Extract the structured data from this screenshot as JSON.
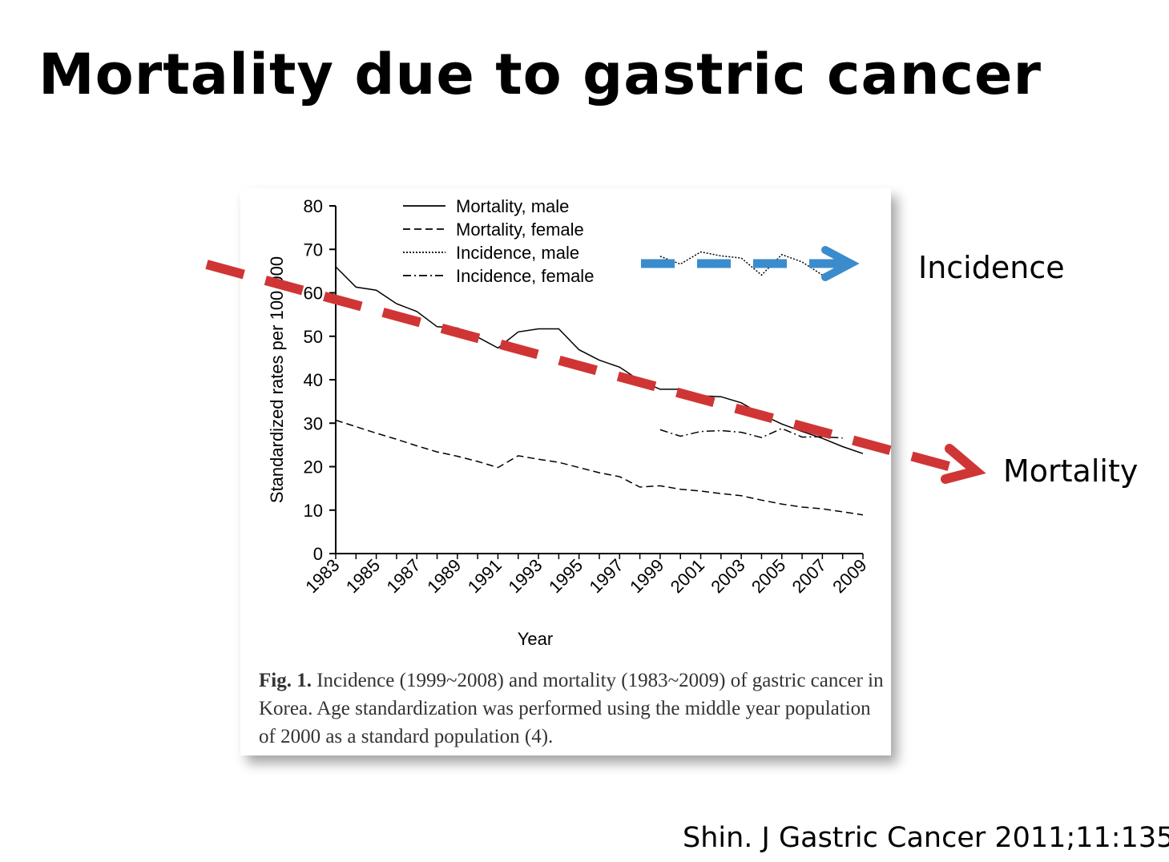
{
  "slide": {
    "title": "Mortality due to gastric cancer",
    "citation": "Shin. J Gastric Cancer 2011;11:135",
    "annotations": {
      "incidence_label": "Incidence",
      "mortality_label": "Mortality",
      "incidence_arrow_color": "#3b8ccc",
      "mortality_arrow_color": "#d03535"
    }
  },
  "figure": {
    "caption_label": "Fig. 1.",
    "caption_text": " Incidence (1999~2008) and mortality (1983~2009) of gastric cancer in Korea. Age standardization was performed using the middle year population of 2000 as a standard population (4)."
  },
  "chart_data": {
    "type": "line",
    "title": "",
    "xlabel": "Year",
    "ylabel": "Standardized rates per 100,000",
    "xlim": [
      1983,
      2009
    ],
    "ylim": [
      0,
      80
    ],
    "yticks": [
      0,
      10,
      20,
      30,
      40,
      50,
      60,
      70,
      80
    ],
    "xticks": [
      "1983",
      "1985",
      "1987",
      "1989",
      "1991",
      "1993",
      "1995",
      "1997",
      "1999",
      "2001",
      "2003",
      "2005",
      "2007",
      "2009"
    ],
    "grid": false,
    "legend_position": "top",
    "series": [
      {
        "name": "Mortality, male",
        "style": "solid",
        "x": [
          1983,
          1984,
          1985,
          1986,
          1987,
          1988,
          1989,
          1990,
          1991,
          1992,
          1993,
          1994,
          1995,
          1996,
          1997,
          1998,
          1999,
          2000,
          2001,
          2002,
          2003,
          2004,
          2005,
          2006,
          2007,
          2008,
          2009
        ],
        "y": [
          66,
          61.3,
          60.6,
          57.5,
          55.7,
          52.2,
          51.9,
          49.8,
          47.3,
          51,
          51.7,
          51.7,
          46.9,
          44.5,
          42.9,
          39.8,
          37.8,
          37.8,
          36.3,
          36.1,
          34.7,
          32,
          29.8,
          28.1,
          26.5,
          24.6,
          23
        ]
      },
      {
        "name": "Mortality, female",
        "style": "dashed",
        "x": [
          1983,
          1984,
          1985,
          1986,
          1987,
          1988,
          1989,
          1990,
          1991,
          1992,
          1993,
          1994,
          1995,
          1996,
          1997,
          1998,
          1999,
          2000,
          2001,
          2002,
          2003,
          2004,
          2005,
          2006,
          2007,
          2008,
          2009
        ],
        "y": [
          30.7,
          29.2,
          27.7,
          26.3,
          24.8,
          23.4,
          22.4,
          21.2,
          19.8,
          22.5,
          21.7,
          21,
          19.8,
          18.6,
          17.7,
          15.3,
          15.6,
          14.8,
          14.4,
          13.8,
          13.3,
          12.3,
          11.4,
          10.7,
          10.3,
          9.6,
          8.9
        ]
      },
      {
        "name": "Incidence, male",
        "style": "dotted",
        "x": [
          1999,
          2000,
          2001,
          2002,
          2003,
          2004,
          2005,
          2006,
          2007,
          2008
        ],
        "y": [
          68.4,
          66.6,
          69.4,
          68.5,
          68,
          64.1,
          68.8,
          67.1,
          64.1,
          65.8
        ]
      },
      {
        "name": "Incidence, female",
        "style": "dashdot",
        "x": [
          1999,
          2000,
          2001,
          2002,
          2003,
          2004,
          2005,
          2006,
          2007,
          2008
        ],
        "y": [
          28.5,
          27,
          28.1,
          28.3,
          27.9,
          26.7,
          28.8,
          26.8,
          26.9,
          26.6
        ]
      }
    ]
  }
}
